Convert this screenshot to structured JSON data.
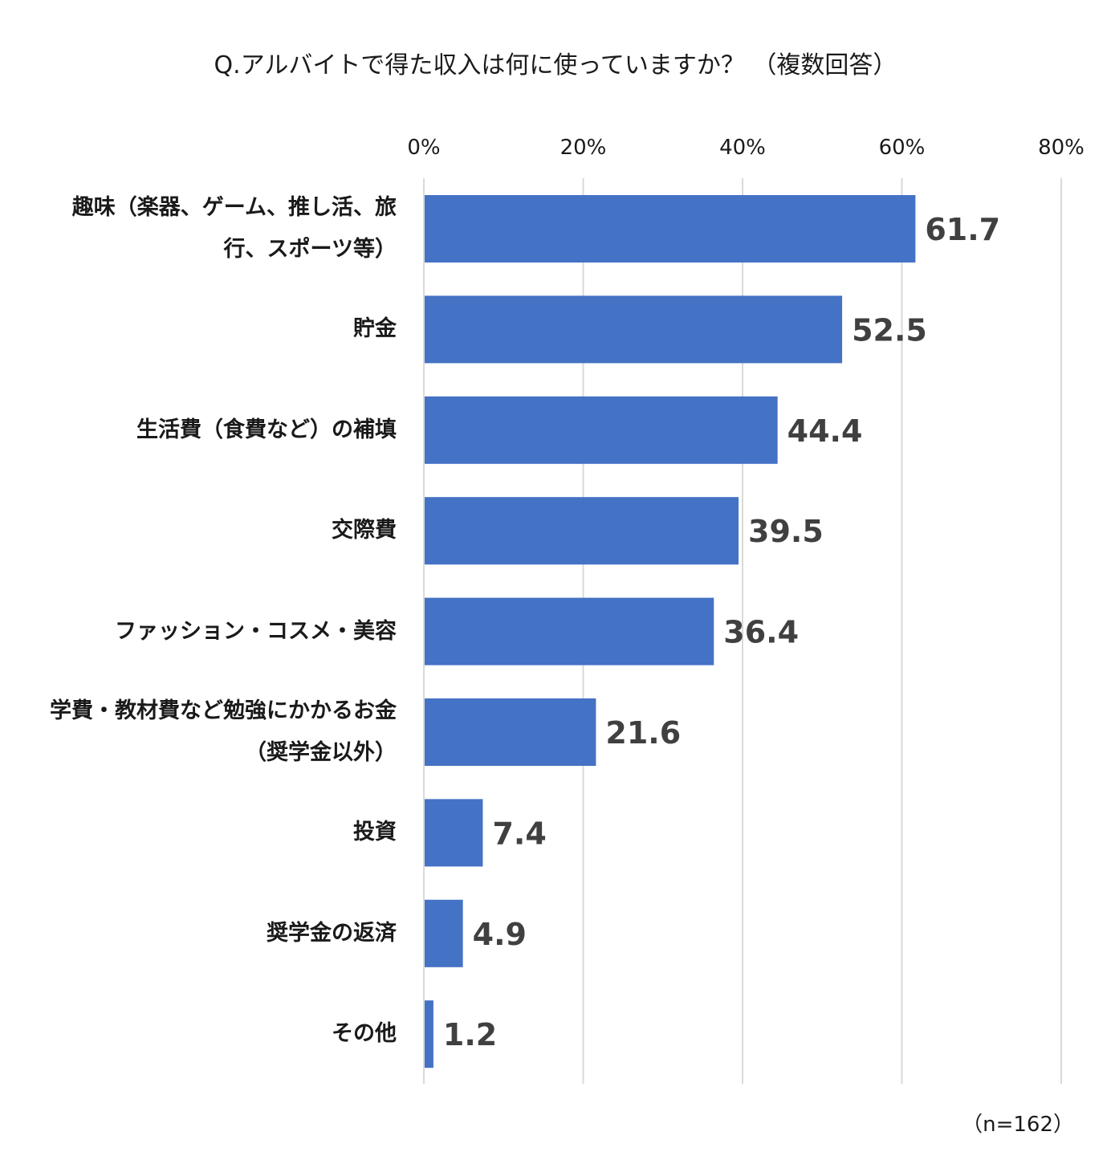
{
  "chart_data": {
    "type": "bar",
    "orientation": "horizontal",
    "title": "Q.アルバイトで得た収入は何に使っていますか？ （複数回答）",
    "categories": [
      "趣味（楽器、ゲーム、推し活、旅行、スポーツ等）",
      "貯金",
      "生活費（食費など）の補填",
      "交際費",
      "ファッション・コスメ・美容",
      "学費・教材費など勉強にかかるお金（奨学金以外）",
      "投資",
      "奨学金の返済",
      "その他"
    ],
    "category_lines": [
      [
        "趣味（楽器、ゲーム、推し活、旅",
        "行、スポーツ等）"
      ],
      [
        "貯金"
      ],
      [
        "生活費（食費など）の補填"
      ],
      [
        "交際費"
      ],
      [
        "ファッション・コスメ・美容"
      ],
      [
        "学費・教材費など勉強にかかるお金",
        "（奨学金以外）"
      ],
      [
        "投資"
      ],
      [
        "奨学金の返済"
      ],
      [
        "その他"
      ]
    ],
    "values": [
      61.7,
      52.5,
      44.4,
      39.5,
      36.4,
      21.6,
      7.4,
      4.9,
      1.2
    ],
    "value_labels": [
      "61.7",
      "52.5",
      "44.4",
      "39.5",
      "36.4",
      "21.6",
      "7.4",
      "4.9",
      "1.2"
    ],
    "xlim": [
      0,
      80
    ],
    "xticks": [
      0,
      20,
      40,
      60,
      80
    ],
    "xtick_labels": [
      "0%",
      "20%",
      "40%",
      "60%",
      "80%"
    ],
    "grid": true,
    "xlabel": "",
    "ylabel": "",
    "bar_color": "#4472C4",
    "gridline_color": "#d9d9d9",
    "value_label_color": "#404040",
    "note": "（n=162）"
  }
}
